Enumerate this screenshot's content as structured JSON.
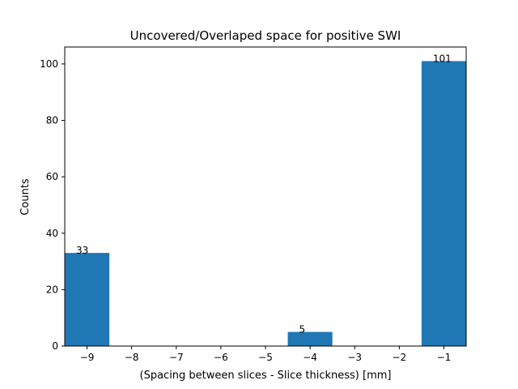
{
  "chart_data": {
    "type": "bar",
    "title": "Uncovered/Overlaped space for positive SWI",
    "xlabel": "(Spacing between slices - Slice thickness) [mm]",
    "ylabel": "Counts",
    "xlim": [
      -9.5,
      -0.5
    ],
    "ylim": [
      0,
      106
    ],
    "xticks": [
      -9,
      -8,
      -7,
      -6,
      -5,
      -4,
      -3,
      -2,
      -1
    ],
    "xtick_labels": [
      "−9",
      "−8",
      "−7",
      "−6",
      "−5",
      "−4",
      "−3",
      "−2",
      "−1"
    ],
    "yticks": [
      0,
      20,
      40,
      60,
      80,
      100
    ],
    "ytick_labels": [
      "0",
      "20",
      "40",
      "60",
      "80",
      "100"
    ],
    "bin_edges": [
      -9.5,
      -8.5,
      -7.5,
      -6.5,
      -5.5,
      -4.5,
      -3.5,
      -2.5,
      -1.5,
      -0.5
    ],
    "values": [
      33,
      0,
      0,
      0,
      0,
      5,
      0,
      0,
      101
    ],
    "data_labels": [
      "33",
      "",
      "",
      "",
      "",
      "5",
      "",
      "",
      "101"
    ],
    "bar_color": "#1f77b4",
    "grid": false,
    "legend": "none"
  }
}
